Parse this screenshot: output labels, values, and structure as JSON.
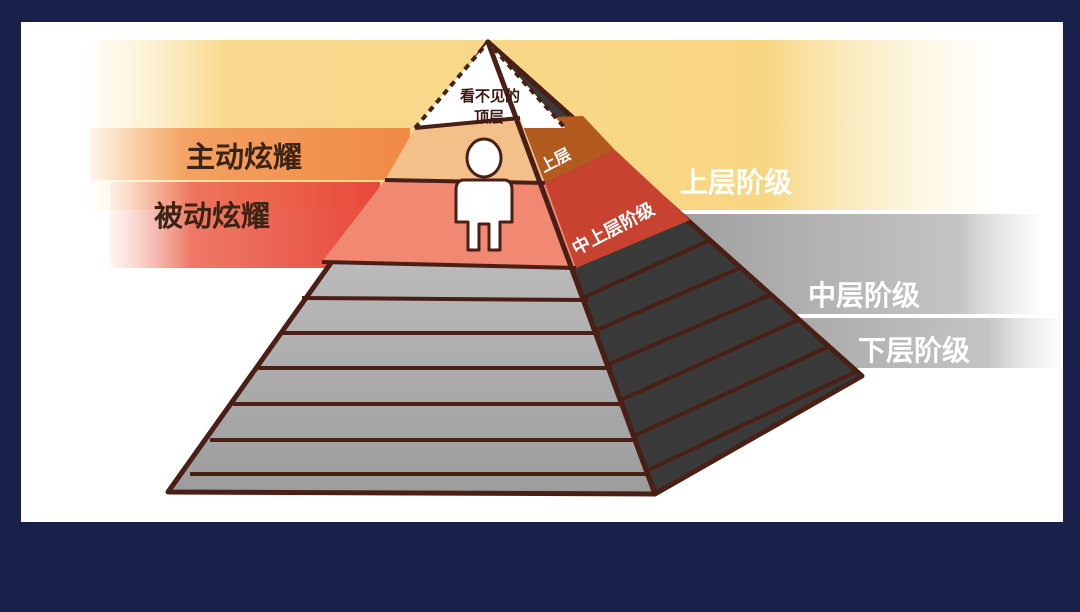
{
  "diagram": {
    "apex_label_line1": "看不见的",
    "apex_label_line2": "顶层",
    "upper_label": "上层",
    "upper_middle_label": "中上层阶级",
    "left_band_active": "主动炫耀",
    "left_band_passive": "被动炫耀",
    "right_band_upper_class": "上层阶级",
    "right_band_middle_class": "中层阶级",
    "right_band_lower_class": "下层阶级",
    "person_icon": "person-icon"
  },
  "colors": {
    "frame_background": "#17214a",
    "canvas": "#ffffff",
    "outline": "#4a1f16",
    "upper_band": "#f6c95a",
    "active_band": "#f08a46",
    "passive_band": "#e8493a",
    "gray_band": "#9a9a9a",
    "upper_tier": "#b35a1e",
    "upper_middle_tier": "#c7432f"
  }
}
